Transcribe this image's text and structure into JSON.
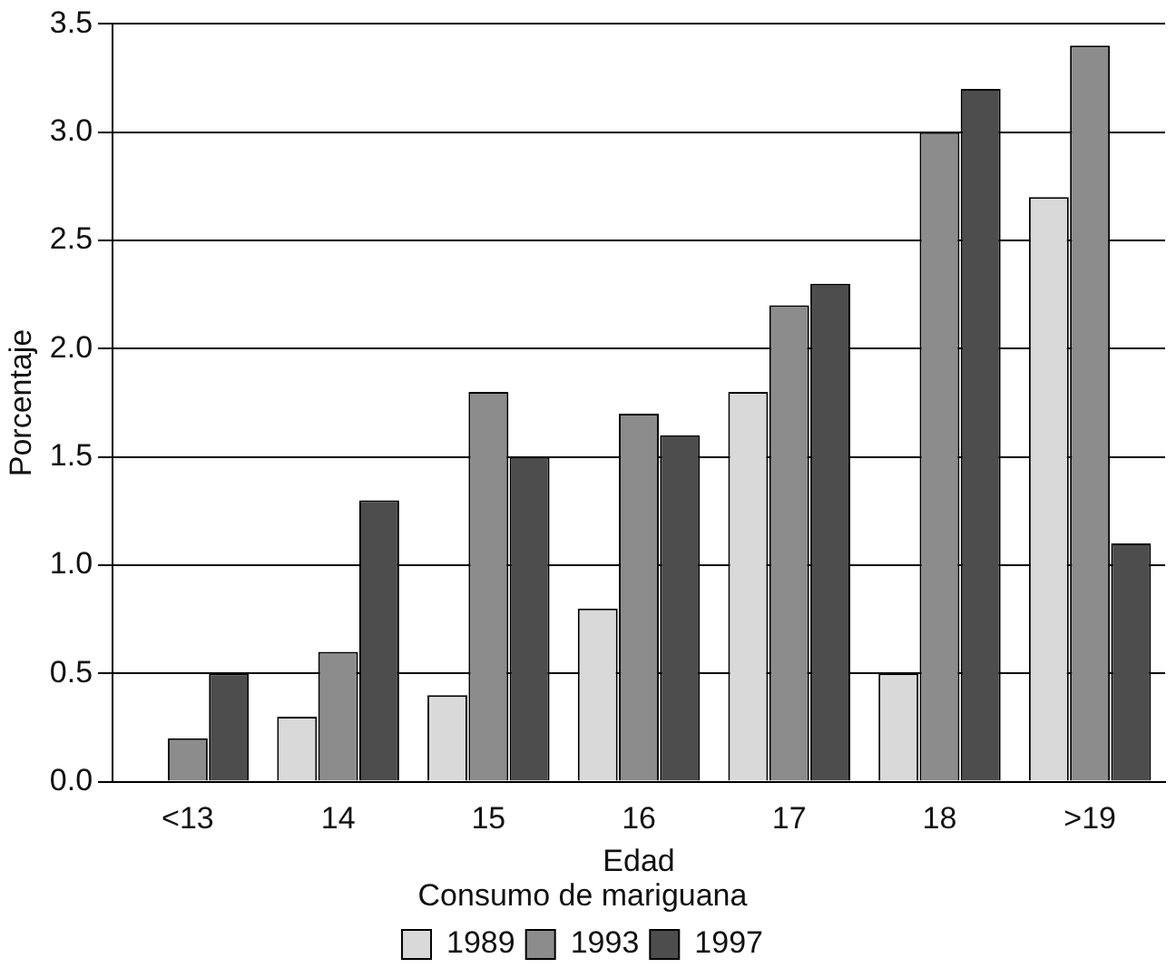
{
  "chart_data": {
    "type": "bar",
    "xlabel": "Edad",
    "ylabel": "Porcentaje",
    "legend_title": "Consumo de mariguana",
    "categories": [
      "<13",
      "14",
      "15",
      "16",
      "17",
      "18",
      ">19"
    ],
    "series": [
      {
        "name": "1989",
        "color": "#d9d9d9",
        "values": [
          0,
          0.3,
          0.4,
          0.8,
          1.8,
          0.5,
          2.7
        ]
      },
      {
        "name": "1993",
        "color": "#8c8c8c",
        "values": [
          0.2,
          0.6,
          1.8,
          1.7,
          2.2,
          3.0,
          3.4
        ]
      },
      {
        "name": "1997",
        "color": "#4d4d4d",
        "values": [
          0.5,
          1.3,
          1.5,
          1.6,
          2.3,
          3.2,
          1.1
        ]
      }
    ],
    "ylim": [
      0,
      3.5
    ],
    "yticks": [
      {
        "value": 0,
        "label": "0.0"
      },
      {
        "value": 0.5,
        "label": "0.5"
      },
      {
        "value": 1,
        "label": "1.0"
      },
      {
        "value": 1.5,
        "label": "1.5"
      },
      {
        "value": 2,
        "label": "2.0"
      },
      {
        "value": 2.5,
        "label": "2.5"
      },
      {
        "value": 3,
        "label": "3.0"
      },
      {
        "value": 3.5,
        "label": "3.5"
      }
    ],
    "grid": "y",
    "legend": "bottom"
  }
}
